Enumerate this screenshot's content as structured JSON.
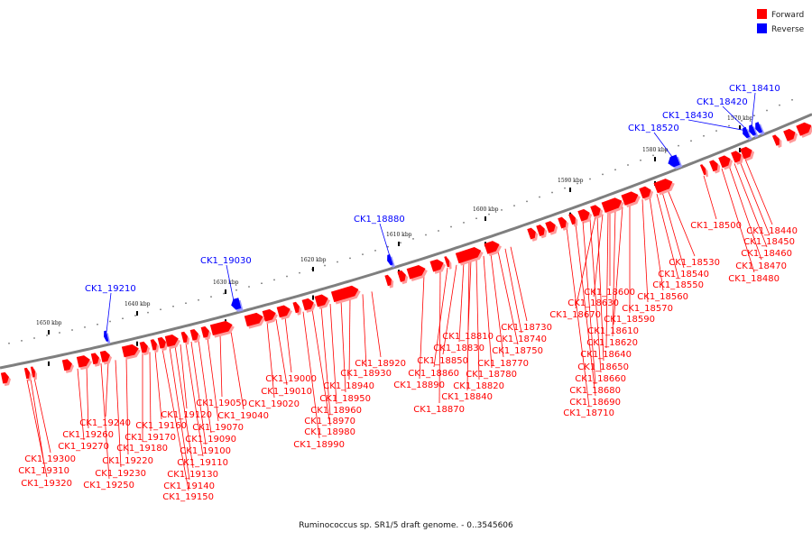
{
  "legend": {
    "forward": {
      "label": "Forward",
      "color": "#ff0000"
    },
    "reverse": {
      "label": "Reverse",
      "color": "#0000ff"
    }
  },
  "caption": "Ruminococcus sp. SR1/5 draft genome. - 0..3545606",
  "colors": {
    "backbone": "#7f7f7f",
    "forward_line": "#ff0000",
    "reverse_line": "#0000ff",
    "tick": "#000000"
  },
  "ticks": [
    "1570 kbp",
    "1580 kbp",
    "1590 kbp",
    "1600 kbp",
    "1610 kbp",
    "1620 kbp",
    "1630 kbp",
    "1640 kbp",
    "1650 kbp"
  ],
  "reverse_genes": [
    "CK1_18410",
    "CK1_18420",
    "CK1_18430",
    "CK1_18520",
    "CK1_18880",
    "CK1_19030",
    "CK1_19210"
  ],
  "forward_genes": [
    "CK1_18440",
    "CK1_18450",
    "CK1_18460",
    "CK1_18470",
    "CK1_18480",
    "CK1_18500",
    "CK1_18530",
    "CK1_18540",
    "CK1_18550",
    "CK1_18560",
    "CK1_18570",
    "CK1_18590",
    "CK1_18600",
    "CK1_18610",
    "CK1_18620",
    "CK1_18630",
    "CK1_18640",
    "CK1_18650",
    "CK1_18660",
    "CK1_18670",
    "CK1_18680",
    "CK1_18690",
    "CK1_18710",
    "CK1_18730",
    "CK1_18740",
    "CK1_18750",
    "CK1_18770",
    "CK1_18780",
    "CK1_18810",
    "CK1_18820",
    "CK1_18830",
    "CK1_18840",
    "CK1_18850",
    "CK1_18860",
    "CK1_18870",
    "CK1_18890",
    "CK1_18920",
    "CK1_18930",
    "CK1_18940",
    "CK1_18950",
    "CK1_18960",
    "CK1_18970",
    "CK1_18980",
    "CK1_18990",
    "CK1_19000",
    "CK1_19010",
    "CK1_19020",
    "CK1_19040",
    "CK1_19050",
    "CK1_19070",
    "CK1_19090",
    "CK1_19100",
    "CK1_19110",
    "CK1_19120",
    "CK1_19130",
    "CK1_19140",
    "CK1_19150",
    "CK1_19160",
    "CK1_19170",
    "CK1_19180",
    "CK1_19220",
    "CK1_19230",
    "CK1_19240",
    "CK1_19250",
    "CK1_19260",
    "CK1_19270",
    "CK1_19300",
    "CK1_19310",
    "CK1_19320"
  ]
}
